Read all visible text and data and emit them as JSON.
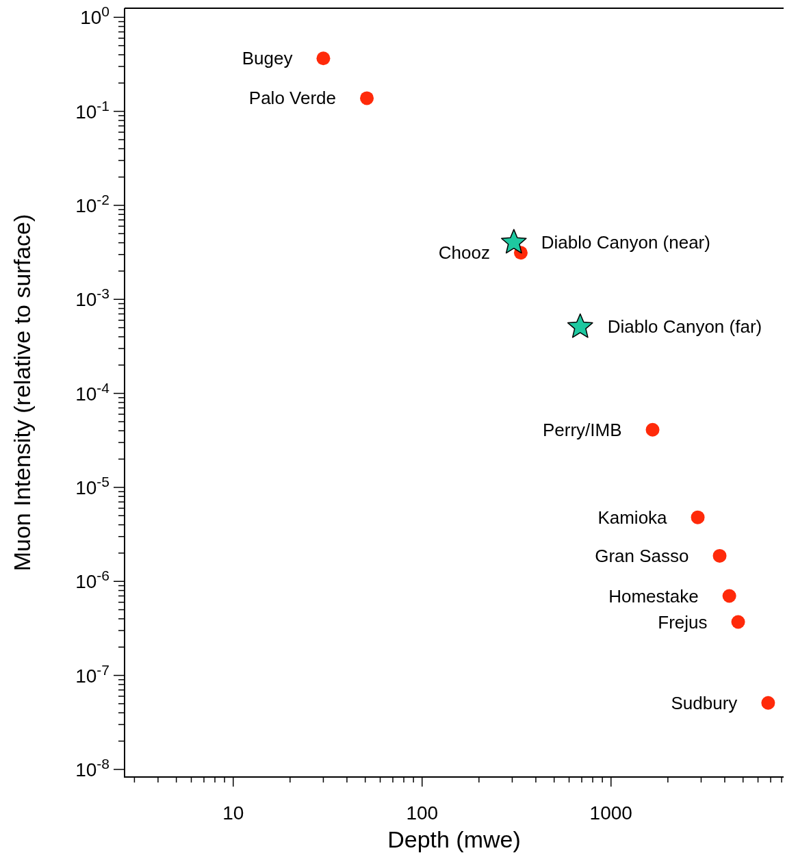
{
  "chart_data": {
    "type": "scatter",
    "xlabel": "Depth (mwe)",
    "ylabel": "Muon Intensity (relative to surface)",
    "log": "xy",
    "grid": false,
    "xlim": [
      2.66,
      8200
    ],
    "ylim": [
      8.3e-09,
      1.25
    ],
    "xticks": [
      {
        "value": 3,
        "label": null
      },
      {
        "value": 4,
        "label": null
      },
      {
        "value": 5,
        "label": null
      },
      {
        "value": 6,
        "label": null
      },
      {
        "value": 7,
        "label": null
      },
      {
        "value": 8,
        "label": null
      },
      {
        "value": 9,
        "label": null
      },
      10,
      {
        "value": 20,
        "label": null
      },
      {
        "value": 30,
        "label": null
      },
      {
        "value": 40,
        "label": null
      },
      {
        "value": 50,
        "label": null
      },
      {
        "value": 60,
        "label": null
      },
      {
        "value": 70,
        "label": null
      },
      {
        "value": 80,
        "label": null
      },
      {
        "value": 90,
        "label": null
      },
      100,
      {
        "value": 200,
        "label": null
      },
      {
        "value": 300,
        "label": null
      },
      {
        "value": 400,
        "label": null
      },
      {
        "value": 500,
        "label": null
      },
      {
        "value": 600,
        "label": null
      },
      {
        "value": 700,
        "label": null
      },
      {
        "value": 800,
        "label": null
      },
      {
        "value": 900,
        "label": null
      },
      1000,
      {
        "value": 2000,
        "label": null
      },
      {
        "value": 3000,
        "label": null
      },
      {
        "value": 4000,
        "label": null
      },
      {
        "value": 5000,
        "label": null
      },
      {
        "value": 6000,
        "label": null
      },
      {
        "value": 7000,
        "label": null
      },
      {
        "value": 8000,
        "label": null
      }
    ],
    "yticks": [
      {
        "value": 1e-08,
        "label": "10$^{-8}$"
      },
      {
        "value": 2e-08,
        "label": null
      },
      {
        "value": 3e-08,
        "label": null
      },
      {
        "value": 4e-08,
        "label": null
      },
      {
        "value": 5e-08,
        "label": null
      },
      {
        "value": 6e-08,
        "label": null
      },
      {
        "value": 7e-08,
        "label": null
      },
      {
        "value": 8e-08,
        "label": null
      },
      {
        "value": 9e-08,
        "label": null
      },
      {
        "value": 1e-07,
        "label": "10$^{-7}$"
      },
      {
        "value": 2e-07,
        "label": null
      },
      {
        "value": 3e-07,
        "label": null
      },
      {
        "value": 4e-07,
        "label": null
      },
      {
        "value": 5e-07,
        "label": null
      },
      {
        "value": 6e-07,
        "label": null
      },
      {
        "value": 7e-07,
        "label": null
      },
      {
        "value": 8e-07,
        "label": null
      },
      {
        "value": 9e-07,
        "label": null
      },
      {
        "value": 1e-06,
        "label": "10$^{-6}$"
      },
      {
        "value": 2e-06,
        "label": null
      },
      {
        "value": 3e-06,
        "label": null
      },
      {
        "value": 4e-06,
        "label": null
      },
      {
        "value": 5e-06,
        "label": null
      },
      {
        "value": 6e-06,
        "label": null
      },
      {
        "value": 7e-06,
        "label": null
      },
      {
        "value": 8e-06,
        "label": null
      },
      {
        "value": 9e-06,
        "label": null
      },
      {
        "value": 1e-05,
        "label": "10$^{-5}$"
      },
      {
        "value": 2e-05,
        "label": null
      },
      {
        "value": 3e-05,
        "label": null
      },
      {
        "value": 4e-05,
        "label": null
      },
      {
        "value": 5e-05,
        "label": null
      },
      {
        "value": 6e-05,
        "label": null
      },
      {
        "value": 7e-05,
        "label": null
      },
      {
        "value": 8e-05,
        "label": null
      },
      {
        "value": 9e-05,
        "label": null
      },
      {
        "value": 0.0001,
        "label": "10$^{-4}$"
      },
      {
        "value": 0.0002,
        "label": null
      },
      {
        "value": 0.0003,
        "label": null
      },
      {
        "value": 0.0004,
        "label": null
      },
      {
        "value": 0.0005,
        "label": null
      },
      {
        "value": 0.0006,
        "label": null
      },
      {
        "value": 0.0007,
        "label": null
      },
      {
        "value": 0.0008,
        "label": null
      },
      {
        "value": 0.0009,
        "label": null
      },
      {
        "value": 0.001,
        "label": "10$^{-3}$"
      },
      {
        "value": 0.002,
        "label": null
      },
      {
        "value": 0.003,
        "label": null
      },
      {
        "value": 0.004,
        "label": null
      },
      {
        "value": 0.005,
        "label": null
      },
      {
        "value": 0.006,
        "label": null
      },
      {
        "value": 0.007,
        "label": null
      },
      {
        "value": 0.008,
        "label": null
      },
      {
        "value": 0.009,
        "label": null
      },
      {
        "value": 0.01,
        "label": "10$^{-2}$"
      },
      {
        "value": 0.02,
        "label": null
      },
      {
        "value": 0.03,
        "label": null
      },
      {
        "value": 0.04,
        "label": null
      },
      {
        "value": 0.05,
        "label": null
      },
      {
        "value": 0.06,
        "label": null
      },
      {
        "value": 0.07,
        "label": null
      },
      {
        "value": 0.08,
        "label": null
      },
      {
        "value": 0.09,
        "label": null
      },
      {
        "value": 0.1,
        "label": "10$^{-1}$"
      },
      {
        "value": 0.2,
        "label": null
      },
      {
        "value": 0.3,
        "label": null
      },
      {
        "value": 0.4,
        "label": null
      },
      {
        "value": 0.5,
        "label": null
      },
      {
        "value": 0.6,
        "label": null
      },
      {
        "value": 0.7,
        "label": null
      },
      {
        "value": 0.8,
        "label": null
      },
      {
        "value": 0.9,
        "label": null
      },
      {
        "value": 1,
        "label": "10$^{0}$"
      }
    ],
    "series": [
      {
        "type": "scatter",
        "marker": "circle",
        "color": "#ff2a0a",
        "x": [
          30,
          51,
          333,
          1660,
          2880,
          3760,
          4230,
          4710,
          6790
        ],
        "values": [
          0.366,
          0.138,
          0.00313,
          4.1e-05,
          4.8e-06,
          1.87e-06,
          7e-07,
          3.7e-07,
          5.1e-08
        ]
      },
      {
        "type": "scatter",
        "marker": "star",
        "color": "#1ec8a0",
        "x": [
          306,
          687
        ],
        "values": [
          0.00403,
          0.00051
        ]
      }
    ],
    "annotations": [
      {
        "text": "Bugey",
        "x": 30,
        "y": 0.366
      },
      {
        "text": "Palo Verde",
        "x": 51,
        "y": 0.138
      },
      {
        "text": "Chooz",
        "x": 333,
        "y": 0.00313
      },
      {
        "text": "Diablo Canyon (near)",
        "x": 306,
        "y": 0.00403
      },
      {
        "text": "Diablo Canyon (far)",
        "x": 687,
        "y": 0.00051
      },
      {
        "text": "Perry/IMB",
        "x": 1660,
        "y": 4.1e-05
      },
      {
        "text": "Kamioka",
        "x": 2880,
        "y": 4.8e-06
      },
      {
        "text": "Gran Sasso",
        "x": 3760,
        "y": 1.87e-06
      },
      {
        "text": "Homestake",
        "x": 4230,
        "y": 7e-07
      },
      {
        "text": "Frejus",
        "x": 4710,
        "y": 3.7e-07
      },
      {
        "text": "Sudbury",
        "x": 6790,
        "y": 5.1e-08
      }
    ]
  }
}
